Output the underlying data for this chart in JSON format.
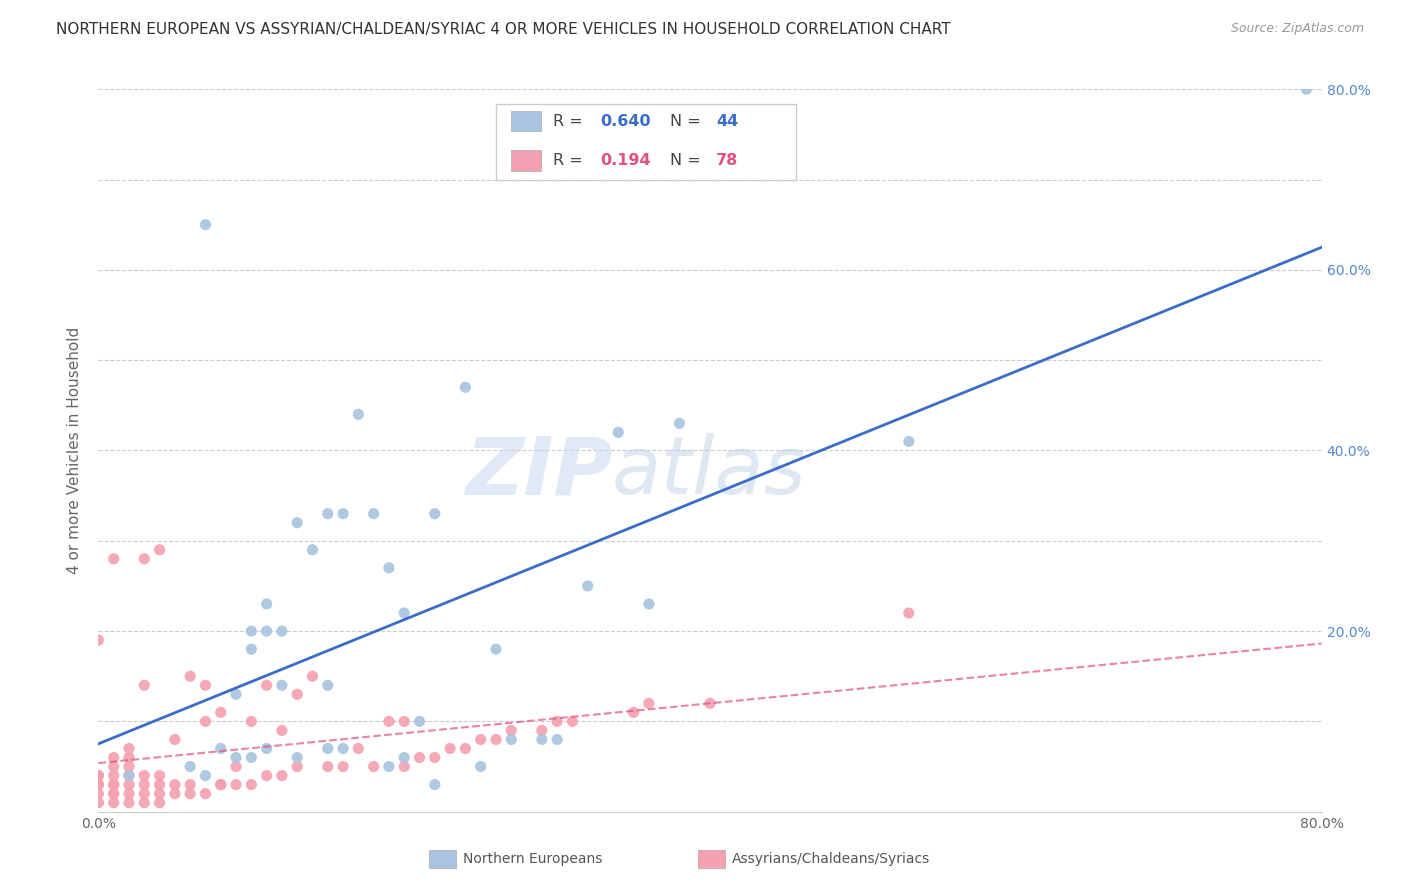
{
  "title": "NORTHERN EUROPEAN VS ASSYRIAN/CHALDEAN/SYRIAC 4 OR MORE VEHICLES IN HOUSEHOLD CORRELATION CHART",
  "source": "Source: ZipAtlas.com",
  "ylabel": "4 or more Vehicles in Household",
  "xlim": [
    0.0,
    0.8
  ],
  "ylim": [
    0.0,
    0.8
  ],
  "blue_R": 0.64,
  "blue_N": 44,
  "pink_R": 0.194,
  "pink_N": 78,
  "blue_color": "#a8c4e0",
  "pink_color": "#f4a0b0",
  "blue_line_color": "#3b6cc7",
  "pink_line_color": "#e05080",
  "legend_label_blue": "Northern Europeans",
  "legend_label_pink": "Assyrians/Chaldeans/Syriacs",
  "blue_scatter_x": [
    0.02,
    0.06,
    0.07,
    0.07,
    0.08,
    0.09,
    0.09,
    0.1,
    0.1,
    0.1,
    0.11,
    0.11,
    0.11,
    0.12,
    0.12,
    0.13,
    0.13,
    0.14,
    0.15,
    0.15,
    0.15,
    0.16,
    0.16,
    0.17,
    0.18,
    0.19,
    0.19,
    0.2,
    0.2,
    0.21,
    0.22,
    0.22,
    0.24,
    0.25,
    0.26,
    0.27,
    0.29,
    0.3,
    0.32,
    0.34,
    0.36,
    0.38,
    0.53,
    0.79
  ],
  "blue_scatter_y": [
    0.04,
    0.05,
    0.65,
    0.04,
    0.07,
    0.06,
    0.13,
    0.06,
    0.18,
    0.2,
    0.07,
    0.2,
    0.23,
    0.14,
    0.2,
    0.06,
    0.32,
    0.29,
    0.07,
    0.14,
    0.33,
    0.33,
    0.07,
    0.44,
    0.33,
    0.05,
    0.27,
    0.22,
    0.06,
    0.1,
    0.33,
    0.03,
    0.47,
    0.05,
    0.18,
    0.08,
    0.08,
    0.08,
    0.25,
    0.42,
    0.23,
    0.43,
    0.41,
    0.8
  ],
  "pink_scatter_x": [
    0.0,
    0.0,
    0.0,
    0.0,
    0.0,
    0.0,
    0.0,
    0.01,
    0.01,
    0.01,
    0.01,
    0.01,
    0.01,
    0.01,
    0.01,
    0.01,
    0.02,
    0.02,
    0.02,
    0.02,
    0.02,
    0.02,
    0.02,
    0.03,
    0.03,
    0.03,
    0.03,
    0.03,
    0.03,
    0.04,
    0.04,
    0.04,
    0.04,
    0.04,
    0.05,
    0.05,
    0.05,
    0.06,
    0.06,
    0.06,
    0.07,
    0.07,
    0.07,
    0.08,
    0.08,
    0.08,
    0.09,
    0.09,
    0.1,
    0.1,
    0.11,
    0.11,
    0.12,
    0.12,
    0.13,
    0.13,
    0.14,
    0.15,
    0.16,
    0.17,
    0.18,
    0.19,
    0.2,
    0.2,
    0.21,
    0.22,
    0.23,
    0.24,
    0.25,
    0.26,
    0.27,
    0.29,
    0.3,
    0.31,
    0.35,
    0.36,
    0.4,
    0.53
  ],
  "pink_scatter_y": [
    0.01,
    0.02,
    0.03,
    0.03,
    0.04,
    0.04,
    0.19,
    0.01,
    0.02,
    0.02,
    0.03,
    0.03,
    0.04,
    0.05,
    0.06,
    0.28,
    0.01,
    0.02,
    0.03,
    0.04,
    0.05,
    0.06,
    0.07,
    0.01,
    0.02,
    0.03,
    0.04,
    0.14,
    0.28,
    0.01,
    0.02,
    0.03,
    0.04,
    0.29,
    0.02,
    0.03,
    0.08,
    0.02,
    0.03,
    0.15,
    0.02,
    0.1,
    0.14,
    0.03,
    0.03,
    0.11,
    0.03,
    0.05,
    0.03,
    0.1,
    0.04,
    0.14,
    0.04,
    0.09,
    0.05,
    0.13,
    0.15,
    0.05,
    0.05,
    0.07,
    0.05,
    0.1,
    0.05,
    0.1,
    0.06,
    0.06,
    0.07,
    0.07,
    0.08,
    0.08,
    0.09,
    0.09,
    0.1,
    0.1,
    0.11,
    0.12,
    0.12,
    0.22
  ],
  "right_ytick_labels": [
    "20.0%",
    "40.0%",
    "60.0%",
    "80.0%"
  ],
  "right_ytick_vals": [
    0.2,
    0.4,
    0.6,
    0.8
  ],
  "bottom_xtick_vals": [
    0.0,
    0.1,
    0.2,
    0.3,
    0.4,
    0.5,
    0.6,
    0.7,
    0.8
  ],
  "bottom_xtick_labels": [
    "0.0%",
    "",
    "",
    "",
    "",
    "",
    "",
    "",
    "80.0%"
  ],
  "grid_color": "#cccccc",
  "grid_yticks": [
    0.1,
    0.2,
    0.3,
    0.4,
    0.5,
    0.6,
    0.7,
    0.8
  ]
}
